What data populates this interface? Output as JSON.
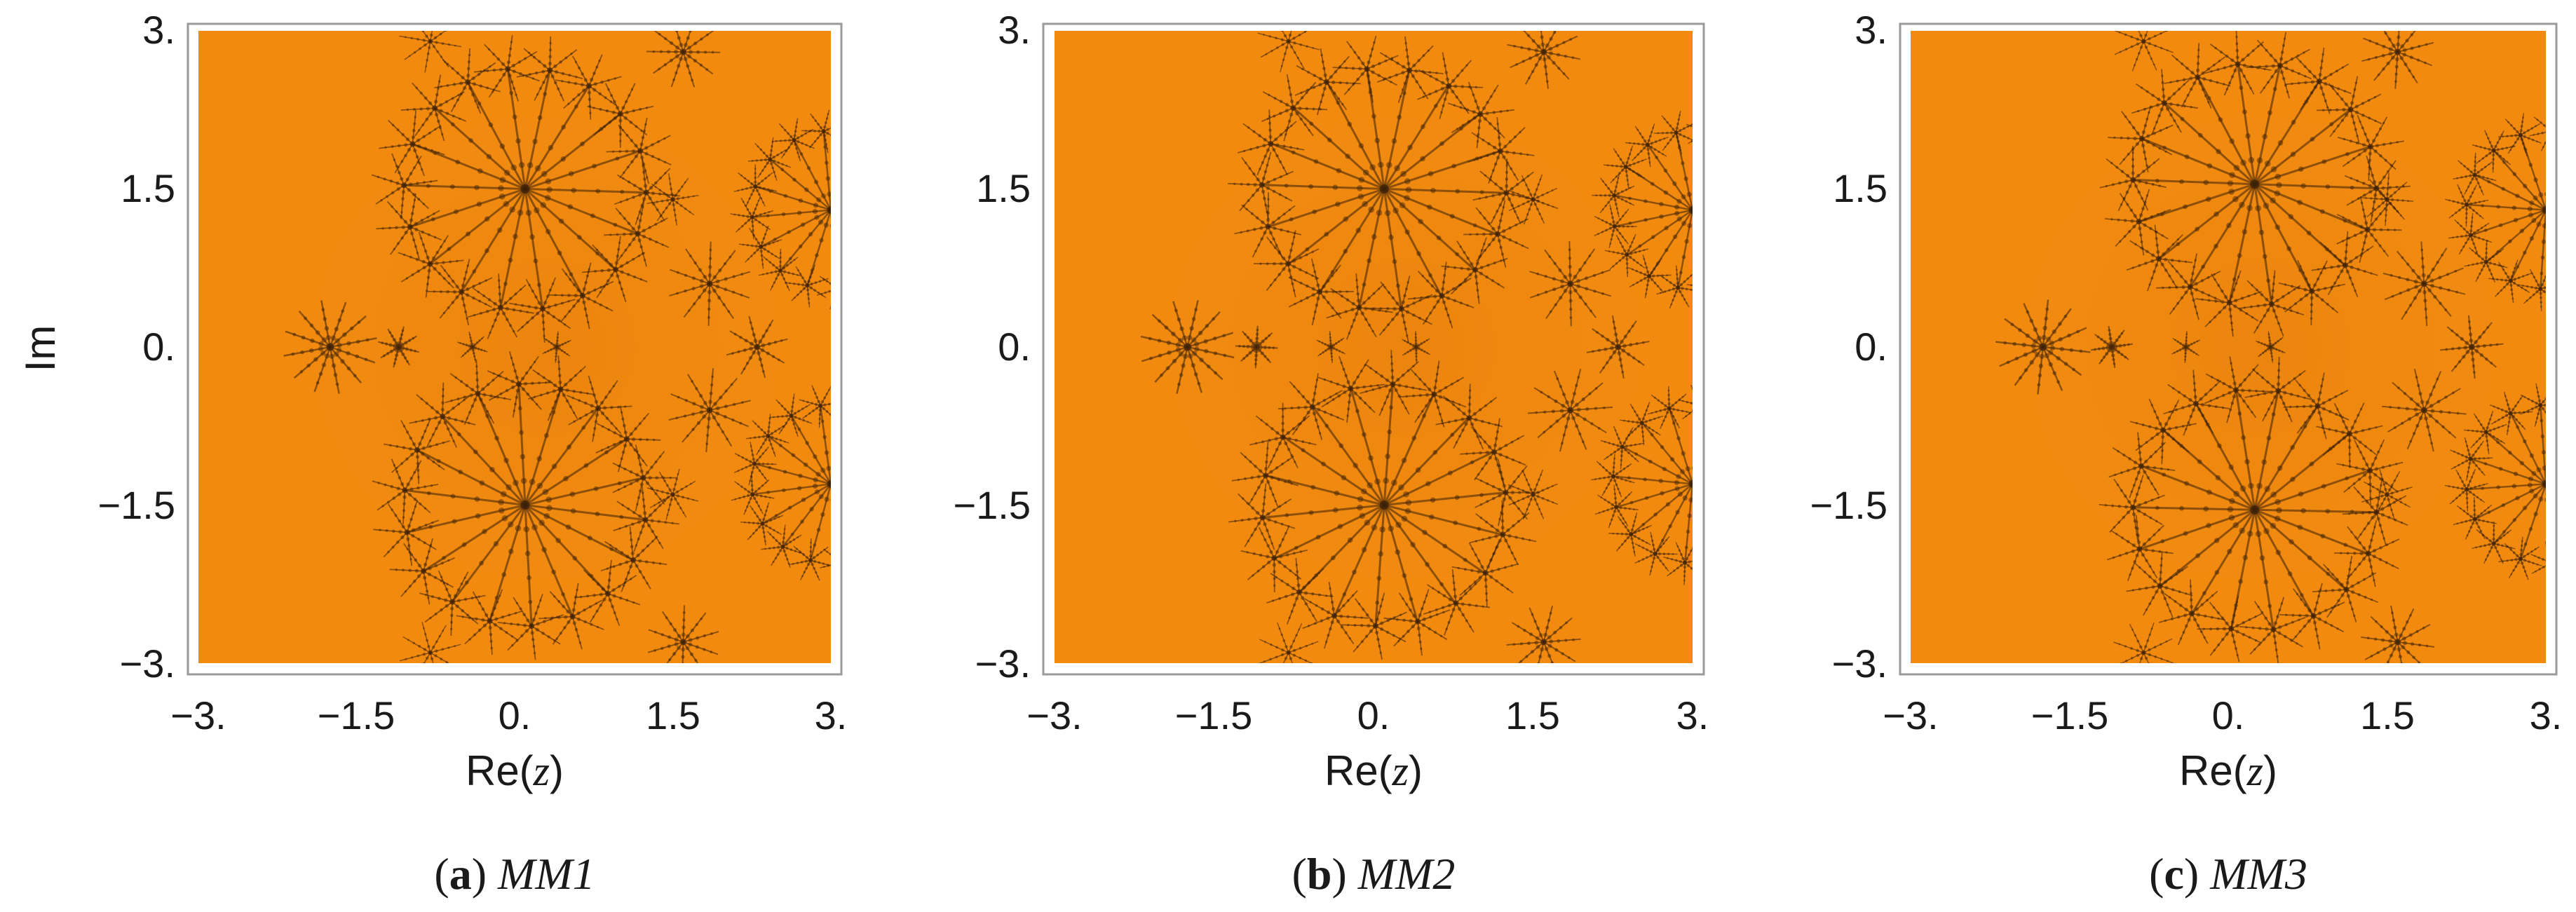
{
  "panels": [
    {
      "letter": "a",
      "name": "MM1",
      "center_shift": 0.0
    },
    {
      "letter": "b",
      "name": "MM2",
      "center_shift": 0.0
    },
    {
      "letter": "c",
      "name": "MM3",
      "center_shift": 0.15
    }
  ],
  "axes": {
    "x_ticks": [
      "−3.",
      "−1.5",
      "0.",
      "1.5",
      "3."
    ],
    "y_ticks": [
      "3.",
      "1.5",
      "0.",
      "−1.5",
      "−3."
    ],
    "x_title_prefix": "Re(",
    "x_title_var": "z",
    "x_title_suffix": ")",
    "y_title": "Im"
  },
  "colors": {
    "background": "#f28a10",
    "fractal": "#3a2008",
    "frame": "#9a9a9a"
  }
}
